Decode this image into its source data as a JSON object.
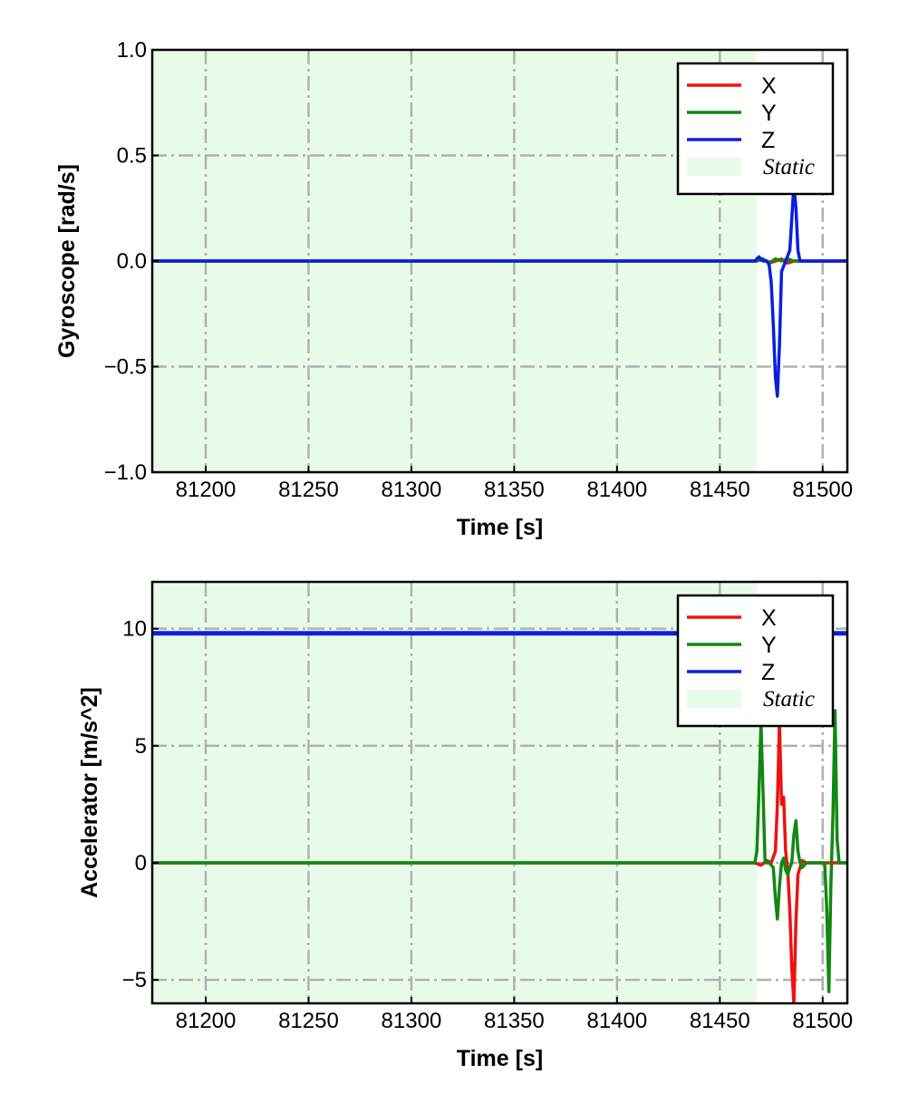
{
  "chart_data": [
    {
      "type": "line",
      "xlabel": "Time [s]",
      "ylabel": "Gyroscope [rad/s]",
      "xlim": [
        81174,
        81512
      ],
      "ylim": [
        -1.0,
        1.0
      ],
      "xticks": [
        81200,
        81250,
        81300,
        81350,
        81400,
        81450,
        81500
      ],
      "xtick_labels": [
        "81200",
        "81250",
        "81300",
        "81350",
        "81400",
        "81450",
        "81500"
      ],
      "yticks": [
        1.0,
        0.5,
        0.0,
        -0.5,
        -1.0
      ],
      "ytick_labels": [
        "1.0",
        "0.5",
        "0.0",
        "−0.5",
        "−1.0"
      ],
      "grid": true,
      "legend_position": "top-right",
      "static_region": {
        "label": "Static",
        "x_start": 81174,
        "x_end": 81468,
        "color": "#e8fbe8"
      },
      "series": [
        {
          "name": "X",
          "color": "#ee1111",
          "x": [
            81174,
            81468,
            81471,
            81474,
            81477,
            81480,
            81483,
            81486,
            81489,
            81512
          ],
          "y": [
            0.0,
            0.0,
            0.01,
            -0.01,
            0.0,
            0.01,
            -0.01,
            0.0,
            0.0,
            0.0
          ]
        },
        {
          "name": "Y",
          "color": "#118811",
          "x": [
            81174,
            81468,
            81471,
            81474,
            81477,
            81480,
            81483,
            81486,
            81489,
            81512
          ],
          "y": [
            0.0,
            0.0,
            0.01,
            -0.01,
            0.01,
            0.0,
            0.01,
            0.0,
            0.0,
            0.0
          ]
        },
        {
          "name": "Z",
          "color": "#0b1fe0",
          "x": [
            81174,
            81467,
            81469,
            81471,
            81473,
            81474,
            81475,
            81476,
            81477,
            81478,
            81479,
            81480,
            81482,
            81484,
            81485,
            81486,
            81487,
            81488,
            81489,
            81491,
            81512
          ],
          "y": [
            0.0,
            0.0,
            0.02,
            0.0,
            0.0,
            -0.02,
            -0.1,
            -0.3,
            -0.55,
            -0.64,
            -0.4,
            -0.05,
            0.0,
            0.05,
            0.2,
            0.36,
            0.25,
            0.05,
            0.0,
            0.0,
            0.0
          ]
        }
      ]
    },
    {
      "type": "line",
      "xlabel": "Time [s]",
      "ylabel": "Accelerator [m/s^2]",
      "xlim": [
        81174,
        81512
      ],
      "ylim": [
        -6,
        12
      ],
      "xticks": [
        81200,
        81250,
        81300,
        81350,
        81400,
        81450,
        81500
      ],
      "xtick_labels": [
        "81200",
        "81250",
        "81300",
        "81350",
        "81400",
        "81450",
        "81500"
      ],
      "yticks": [
        10,
        5,
        0,
        -5
      ],
      "ytick_labels": [
        "10",
        "5",
        "0",
        "−5"
      ],
      "grid": true,
      "legend_position": "top-right",
      "static_region": {
        "label": "Static",
        "x_start": 81174,
        "x_end": 81468,
        "color": "#e8fbe8"
      },
      "series": [
        {
          "name": "X",
          "color": "#ee1111",
          "x": [
            81174,
            81467,
            81470,
            81473,
            81475,
            81477,
            81478,
            81479,
            81480,
            81481,
            81482,
            81483,
            81484,
            81485,
            81486,
            81487,
            81488,
            81490,
            81492,
            81495,
            81512
          ],
          "y": [
            0.0,
            0.0,
            -0.1,
            0.1,
            0.0,
            0.5,
            2.5,
            6.0,
            2.5,
            2.8,
            0.5,
            -0.3,
            -2.0,
            -4.5,
            -6.0,
            -2.5,
            -0.5,
            0.1,
            0.0,
            0.0,
            0.0
          ]
        },
        {
          "name": "Y",
          "color": "#118811",
          "x": [
            81174,
            81467,
            81468,
            81469,
            81470,
            81471,
            81472,
            81474,
            81476,
            81477,
            81478,
            81479,
            81480,
            81481,
            81482,
            81483,
            81484,
            81485,
            81486,
            81487,
            81488,
            81489,
            81490,
            81492,
            81495,
            81498,
            81501,
            81502,
            81503,
            81504,
            81505,
            81506,
            81507,
            81508,
            81510,
            81512
          ],
          "y": [
            0.0,
            0.0,
            0.5,
            3.0,
            6.0,
            3.0,
            0.0,
            0.0,
            -0.2,
            -1.5,
            -2.4,
            -1.0,
            0.0,
            0.2,
            -0.3,
            -0.5,
            -0.2,
            0.0,
            1.2,
            1.8,
            0.5,
            0.0,
            -0.2,
            0.0,
            0.0,
            0.0,
            0.0,
            -2.0,
            -5.5,
            -1.0,
            2.0,
            6.5,
            1.0,
            0.0,
            0.0,
            0.0
          ]
        },
        {
          "name": "Z",
          "color": "#0b1fe0",
          "x": [
            81174,
            81512
          ],
          "y": [
            9.8,
            9.8
          ]
        }
      ]
    }
  ]
}
